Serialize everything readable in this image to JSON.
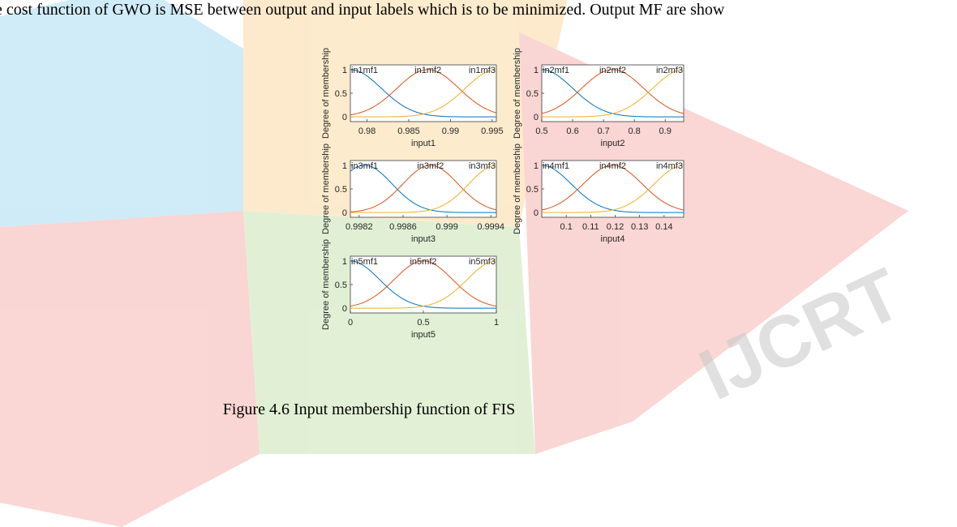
{
  "body_text": "e cost function of GWO is MSE between output and input labels which is to be minimized. Output MF are show",
  "caption": "Figure 4.6 Input membership function of FIS",
  "watermark": "IJCRT",
  "chart_data": [
    {
      "type": "membership",
      "x_label": "input1",
      "y_label": "Degree of membership",
      "xlim": [
        0.978,
        0.9955
      ],
      "xticks": [
        0.98,
        0.985,
        0.99,
        0.995
      ],
      "ylim": [
        -0.1,
        1.1
      ],
      "yticks": [
        0,
        0.5,
        1
      ],
      "series": [
        {
          "name": "in1mf1",
          "color": "#0072bd",
          "center": 0.978,
          "sigma": 0.0037
        },
        {
          "name": "in1mf2",
          "color": "#d95319",
          "center": 0.9873,
          "sigma": 0.0037
        },
        {
          "name": "in1mf3",
          "color": "#edb120",
          "center": 0.9955,
          "sigma": 0.0037
        }
      ]
    },
    {
      "type": "membership",
      "x_label": "input2",
      "y_label": "Degree of membership",
      "xlim": [
        0.5,
        0.96
      ],
      "xticks": [
        0.5,
        0.6,
        0.7,
        0.8,
        0.9
      ],
      "ylim": [
        -0.1,
        1.1
      ],
      "yticks": [
        0,
        0.5,
        1
      ],
      "series": [
        {
          "name": "in2mf1",
          "color": "#0072bd",
          "center": 0.5,
          "sigma": 0.1
        },
        {
          "name": "in2mf2",
          "color": "#d95319",
          "center": 0.73,
          "sigma": 0.1
        },
        {
          "name": "in2mf3",
          "color": "#edb120",
          "center": 0.96,
          "sigma": 0.1
        }
      ]
    },
    {
      "type": "membership",
      "x_label": "input3",
      "y_label": "Degree of membership",
      "xlim": [
        0.99812,
        0.99945
      ],
      "xticks": [
        0.9982,
        0.9986,
        0.999,
        0.9994
      ],
      "ylim": [
        -0.1,
        1.1
      ],
      "yticks": [
        0,
        0.5,
        1
      ],
      "series": [
        {
          "name": "in3mf1",
          "color": "#0072bd",
          "center": 0.99825,
          "sigma": 0.00025
        },
        {
          "name": "in3mf2",
          "color": "#d95319",
          "center": 0.99885,
          "sigma": 0.00025
        },
        {
          "name": "in3mf3",
          "color": "#edb120",
          "center": 0.99945,
          "sigma": 0.00025
        }
      ]
    },
    {
      "type": "membership",
      "x_label": "input4",
      "y_label": "Degree of membership",
      "xlim": [
        0.09,
        0.148
      ],
      "xticks": [
        0.1,
        0.11,
        0.12,
        0.13,
        0.14
      ],
      "ylim": [
        -0.1,
        1.1
      ],
      "yticks": [
        0,
        0.5,
        1
      ],
      "series": [
        {
          "name": "in4mf1",
          "color": "#0072bd",
          "center": 0.09,
          "sigma": 0.012
        },
        {
          "name": "in4mf2",
          "color": "#d95319",
          "center": 0.119,
          "sigma": 0.012
        },
        {
          "name": "in4mf3",
          "color": "#edb120",
          "center": 0.148,
          "sigma": 0.012
        }
      ]
    },
    {
      "type": "membership",
      "x_label": "input5",
      "y_label": "Degree of membership",
      "xlim": [
        0,
        1
      ],
      "xticks": [
        0,
        0.5,
        1
      ],
      "ylim": [
        -0.1,
        1.1
      ],
      "yticks": [
        0,
        0.5,
        1
      ],
      "series": [
        {
          "name": "in5mf1",
          "color": "#0072bd",
          "center": 0,
          "sigma": 0.2
        },
        {
          "name": "in5mf2",
          "color": "#d95319",
          "center": 0.5,
          "sigma": 0.2
        },
        {
          "name": "in5mf3",
          "color": "#edb120",
          "center": 1,
          "sigma": 0.2
        }
      ]
    }
  ]
}
